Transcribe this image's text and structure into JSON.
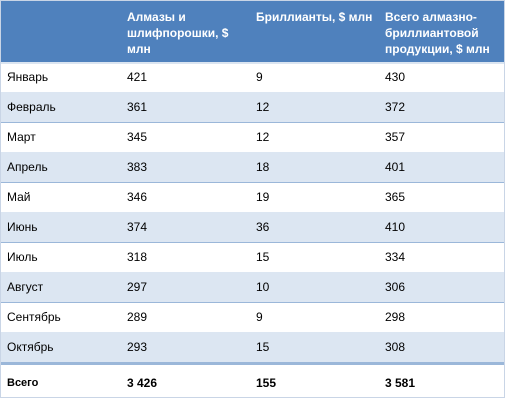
{
  "headers": {
    "col1": "Алмазы и шлифпорошки, $ млн",
    "col2": "Бриллианты, $ млн",
    "col3": "Всего алмазно-бриллиантовой продукции, $ млн"
  },
  "rows": [
    {
      "month": "Январь",
      "diamonds": "421",
      "brilliants": "9",
      "total": "430"
    },
    {
      "month": "Февраль",
      "diamonds": "361",
      "brilliants": "12",
      "total": "372"
    },
    {
      "month": "Март",
      "diamonds": "345",
      "brilliants": "12",
      "total": "357"
    },
    {
      "month": "Апрель",
      "diamonds": "383",
      "brilliants": "18",
      "total": "401"
    },
    {
      "month": "Май",
      "diamonds": "346",
      "brilliants": "19",
      "total": "365"
    },
    {
      "month": "Июнь",
      "diamonds": "374",
      "brilliants": "36",
      "total": "410"
    },
    {
      "month": "Июль",
      "diamonds": "318",
      "brilliants": "15",
      "total": "334"
    },
    {
      "month": "Август",
      "diamonds": "297",
      "brilliants": "10",
      "total": "306"
    },
    {
      "month": "Сентябрь",
      "diamonds": "289",
      "brilliants": "9",
      "total": "298"
    },
    {
      "month": "Октябрь",
      "diamonds": "293",
      "brilliants": "15",
      "total": "308"
    }
  ],
  "totals": {
    "label": "Всего",
    "diamonds": "3 426",
    "brilliants": "155",
    "total": "3 581"
  },
  "colors": {
    "header_bg": "#4f81bd",
    "alt_row_bg": "#dce6f2",
    "grid_line": "#9bb7d9"
  }
}
